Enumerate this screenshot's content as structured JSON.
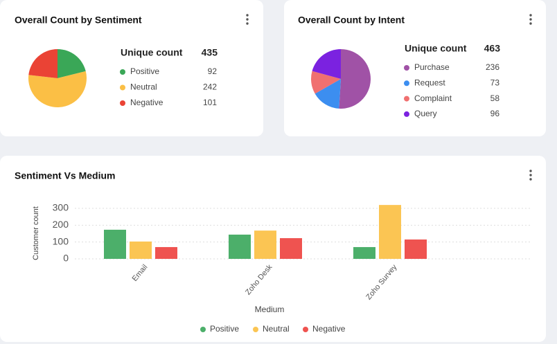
{
  "chart_data": [
    {
      "type": "pie",
      "title": "Overall Count by Sentiment",
      "total_label": "Unique count",
      "total": 435,
      "categories": [
        "Positive",
        "Neutral",
        "Negative"
      ],
      "values": [
        92,
        242,
        101
      ],
      "colors": [
        "#3aa757",
        "#fbbf45",
        "#ea4335"
      ]
    },
    {
      "type": "pie",
      "title": "Overall Count by Intent",
      "total_label": "Unique count",
      "total": 463,
      "categories": [
        "Purchase",
        "Request",
        "Complaint",
        "Query"
      ],
      "values": [
        236,
        73,
        58,
        96
      ],
      "colors": [
        "#a052a6",
        "#3c8ef0",
        "#f07070",
        "#7b22e0"
      ]
    },
    {
      "type": "bar",
      "title": "Sentiment Vs Medium",
      "x_label": "Medium",
      "y_label": "Customer count",
      "categories": [
        "Email",
        "Zoho Desk",
        "Zoho Survey"
      ],
      "series": [
        {
          "name": "Positive",
          "color": "#4caf6a",
          "values": [
            173,
            144,
            70
          ]
        },
        {
          "name": "Neutral",
          "color": "#fbc553",
          "values": [
            103,
            168,
            320
          ]
        },
        {
          "name": "Negative",
          "color": "#ef5350",
          "values": [
            70,
            123,
            115
          ]
        }
      ],
      "ylim": [
        0,
        330
      ],
      "yticks": [
        0,
        100,
        200,
        300
      ],
      "grid": true
    }
  ]
}
